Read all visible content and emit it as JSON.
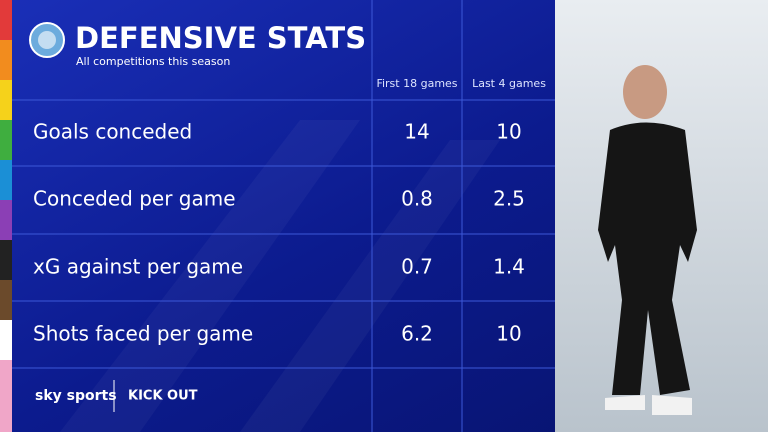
{
  "header": {
    "title": "DEFENSIVE STATS",
    "subtitle": "All competitions this season"
  },
  "table": {
    "columns": [
      "First 18 games",
      "Last 4 games"
    ],
    "rows": [
      [
        "Goals conceded",
        14,
        10
      ],
      [
        "Conceded per game",
        0.8,
        2.5
      ],
      [
        "xG against per game",
        0.7,
        1.4
      ],
      [
        "Shots faced per game",
        6.2,
        10
      ]
    ]
  },
  "footer": {
    "broadcaster": "sky sports",
    "show": "KICK OUT"
  }
}
